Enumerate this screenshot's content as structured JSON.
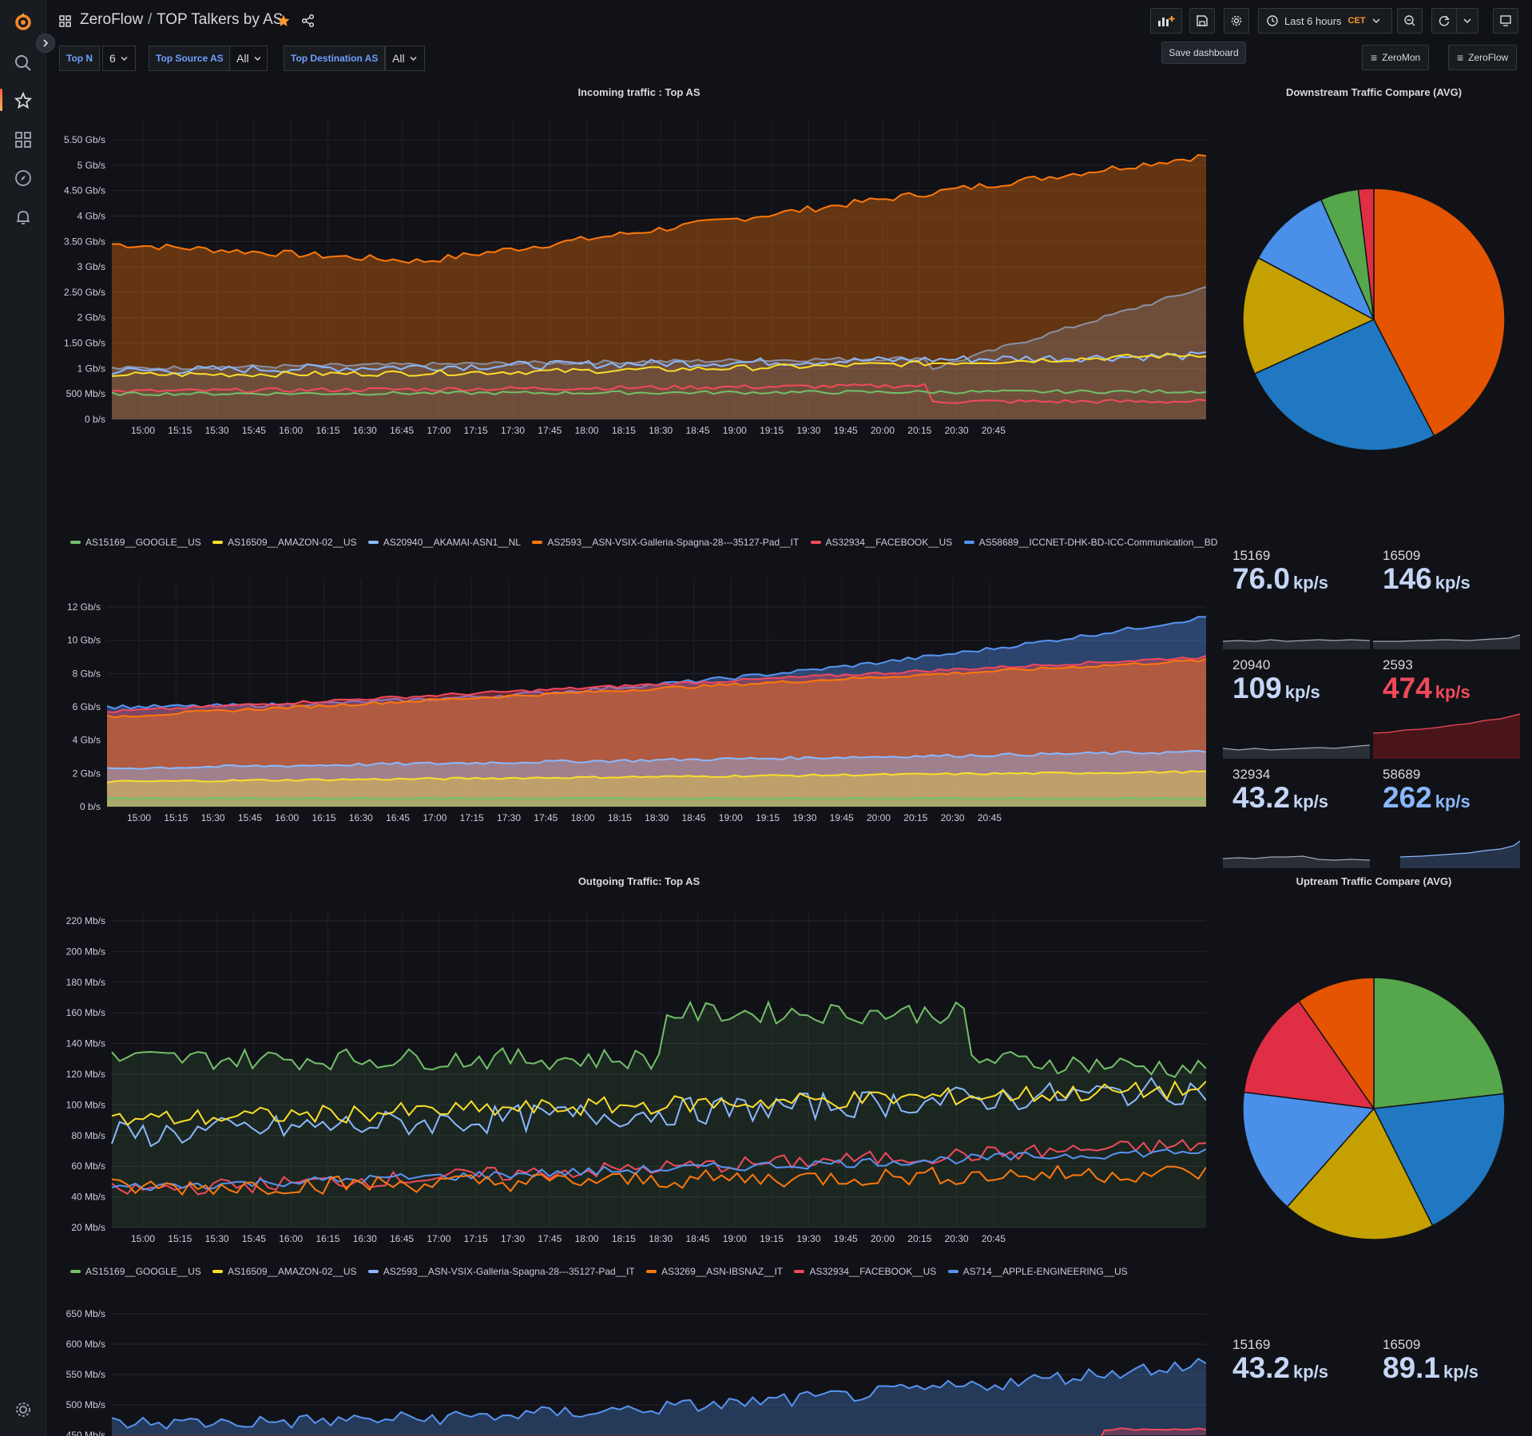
{
  "nav": {
    "breadcrumb_root": "ZeroFlow",
    "breadcrumb_sep": "/",
    "dashboard_title": "TOP Talkers by AS"
  },
  "toolbar": {
    "tooltip": "Save dashboard",
    "time_range": "Last 6 hours",
    "timezone": "CET"
  },
  "variables": [
    {
      "label": "Top N",
      "value": "6"
    },
    {
      "label": "Top Source AS",
      "value": "All"
    },
    {
      "label": "Top Destination AS",
      "value": "All"
    }
  ],
  "links": [
    "ZeroMon",
    "ZeroFlow"
  ],
  "colors": {
    "green": "#73bf69",
    "yellow": "#fade2a",
    "blue": "#8ab8ff",
    "blue2": "#5794f2",
    "orange": "#ff780a",
    "red": "#f2495c",
    "pie_green": "#56a64b",
    "pie_red": "#e02f44",
    "pie_orange": "#e55400",
    "pie_yellow": "#c4a000",
    "pie_blue": "#1f78c1"
  },
  "x_ticks": [
    "15:00",
    "15:15",
    "15:30",
    "15:45",
    "16:00",
    "16:15",
    "16:30",
    "16:45",
    "17:00",
    "17:15",
    "17:30",
    "17:45",
    "18:00",
    "18:15",
    "18:30",
    "18:45",
    "19:00",
    "19:15",
    "19:30",
    "19:45",
    "20:00",
    "20:15",
    "20:30",
    "20:45"
  ],
  "panels": {
    "incoming": {
      "title": "Incoming traffic : Top AS",
      "y_ticks": [
        "5.50 Gb/s",
        "5 Gb/s",
        "4.50 Gb/s",
        "4 Gb/s",
        "3.50 Gb/s",
        "3 Gb/s",
        "2.50 Gb/s",
        "2 Gb/s",
        "1.50 Gb/s",
        "1 Gb/s",
        "500 Mb/s",
        "0 b/s"
      ],
      "legend": [
        {
          "name": "AS15169__GOOGLE__US",
          "color": "#73bf69"
        },
        {
          "name": "AS16509__AMAZON-02__US",
          "color": "#fade2a"
        },
        {
          "name": "AS20940__AKAMAI-ASN1__NL",
          "color": "#8ab8ff"
        },
        {
          "name": "AS2593__ASN-VSIX-Galleria-Spagna-28---35127-Pad__IT",
          "color": "#ff780a"
        },
        {
          "name": "AS32934__FACEBOOK__US",
          "color": "#f2495c"
        },
        {
          "name": "AS58689__ICCNET-DHK-BD-ICC-Communication__BD",
          "color": "#5794f2"
        }
      ]
    },
    "incoming_stacked": {
      "y_ticks": [
        "12 Gb/s",
        "10 Gb/s",
        "8 Gb/s",
        "6 Gb/s",
        "4 Gb/s",
        "2 Gb/s",
        "0 b/s"
      ]
    },
    "outgoing": {
      "title": "Outgoing Traffic: Top AS",
      "y_ticks": [
        "220 Mb/s",
        "200 Mb/s",
        "180 Mb/s",
        "160 Mb/s",
        "140 Mb/s",
        "120 Mb/s",
        "100 Mb/s",
        "80 Mb/s",
        "60 Mb/s",
        "40 Mb/s",
        "20 Mb/s"
      ],
      "legend": [
        {
          "name": "AS15169__GOOGLE__US",
          "color": "#73bf69"
        },
        {
          "name": "AS16509__AMAZON-02__US",
          "color": "#fade2a"
        },
        {
          "name": "AS2593__ASN-VSIX-Galleria-Spagna-28---35127-Pad__IT",
          "color": "#8ab8ff"
        },
        {
          "name": "AS3269__ASN-IBSNAZ__IT",
          "color": "#ff780a"
        },
        {
          "name": "AS32934__FACEBOOK__US",
          "color": "#f2495c"
        },
        {
          "name": "AS714__APPLE-ENGINEERING__US",
          "color": "#5794f2"
        }
      ]
    },
    "outgoing_stacked": {
      "y_ticks": [
        "650 Mb/s",
        "600 Mb/s",
        "550 Mb/s",
        "500 Mb/s",
        "450 Mb/s"
      ]
    },
    "downstream_pie": {
      "title": "Downstream Traffic Compare (AVG)",
      "slices": [
        {
          "value": 42.4,
          "color": "#e55400"
        },
        {
          "value": 25.8,
          "color": "#1f78c1"
        },
        {
          "value": 14.6,
          "color": "#c4a000"
        },
        {
          "value": 10.6,
          "color": "#4a8fe8"
        },
        {
          "value": 4.7,
          "color": "#56a64b"
        },
        {
          "value": 1.9,
          "color": "#e02f44"
        }
      ]
    },
    "upstream_pie": {
      "title": "Uptream Traffic Compare (AVG)",
      "slices": [
        {
          "value": 23.2,
          "color": "#56a64b"
        },
        {
          "value": 19.4,
          "color": "#1f78c1"
        },
        {
          "value": 18.9,
          "color": "#c4a000"
        },
        {
          "value": 15.5,
          "color": "#4a8fe8"
        },
        {
          "value": 13.3,
          "color": "#e02f44"
        },
        {
          "value": 9.7,
          "color": "#e55400"
        }
      ]
    }
  },
  "stats_down": [
    {
      "label": "15169",
      "value": "76.0",
      "unit": "kp/s",
      "color": "#c5d6f5"
    },
    {
      "label": "16509",
      "value": "146",
      "unit": "kp/s",
      "color": "#c5d6f5"
    },
    {
      "label": "20940",
      "value": "109",
      "unit": "kp/s",
      "color": "#c5d6f5"
    },
    {
      "label": "2593",
      "value": "474",
      "unit": "kp/s",
      "color": "#f2495c"
    },
    {
      "label": "32934",
      "value": "43.2",
      "unit": "kp/s",
      "color": "#c5d6f5"
    },
    {
      "label": "58689",
      "value": "262",
      "unit": "kp/s",
      "color": "#8ab8ff"
    }
  ],
  "stats_up": [
    {
      "label": "15169",
      "value": "43.2",
      "unit": "kp/s"
    },
    {
      "label": "16509",
      "value": "89.1",
      "unit": "kp/s"
    }
  ]
}
